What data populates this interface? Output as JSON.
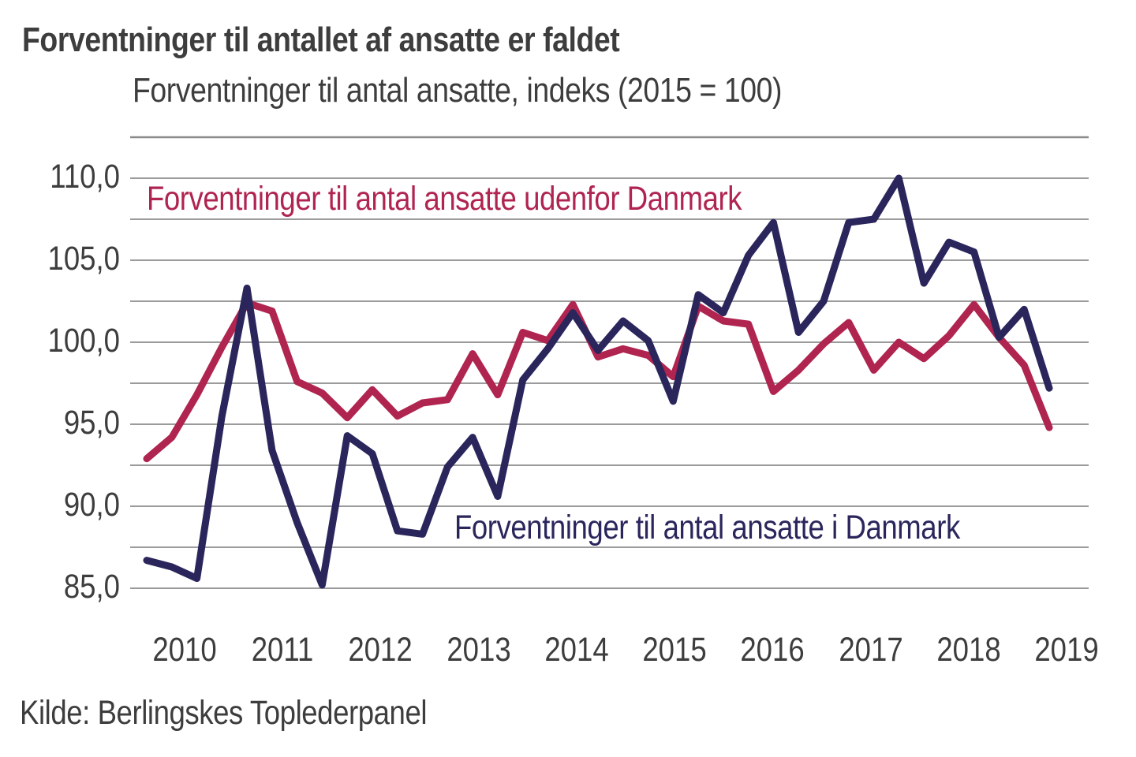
{
  "title": "Forventninger til antallet af ansatte er faldet",
  "subtitle": "Forventninger til antal ansatte, indeks (2015 = 100)",
  "source": "Kilde: Berlingskes Toplederpanel",
  "colors": {
    "red_series": "#B02450",
    "navy_series": "#2A265C",
    "gridline": "#9B9B9B",
    "gridline_top": "#8A8A8A",
    "text": "#3D3D3D"
  },
  "chart_data": {
    "type": "line",
    "title": "Forventninger til antallet af ansatte er faldet",
    "subtitle": "Forventninger til antal ansatte, indeks (2015 = 100)",
    "xlabel": "",
    "ylabel": "",
    "x_start_year": 2010,
    "x_step_years": 0.25,
    "x_tick_labels": [
      "2010",
      "2011",
      "2012",
      "2013",
      "2014",
      "2015",
      "2016",
      "2017",
      "2018",
      "2019"
    ],
    "ylim": [
      85.0,
      112.5
    ],
    "grid_step": 2.5,
    "grid_values": [
      112.5,
      110,
      107.5,
      105,
      102.5,
      100,
      97.5,
      95,
      92.5,
      90,
      87.5,
      85
    ],
    "y_ticks": [
      {
        "value": 110,
        "label": "110,0"
      },
      {
        "value": 105,
        "label": "105,0"
      },
      {
        "value": 100,
        "label": "100,0"
      },
      {
        "value": 95,
        "label": "95,0"
      },
      {
        "value": 90,
        "label": "90,0"
      },
      {
        "value": 85,
        "label": "85,0"
      }
    ],
    "legend_position": "inside-plot-annotations",
    "grid": "horizontal-only",
    "series": [
      {
        "name": "Forventninger til antal ansatte udenfor Danmark",
        "color": "#B02450",
        "values": [
          92.9,
          94.2,
          96.8,
          99.7,
          102.4,
          101.9,
          97.6,
          96.9,
          95.4,
          97.1,
          95.5,
          96.3,
          96.5,
          99.3,
          96.8,
          100.6,
          100.1,
          102.3,
          99.1,
          99.6,
          99.2,
          97.9,
          102.2,
          101.3,
          101.1,
          97.0,
          98.3,
          99.9,
          101.2,
          98.3,
          100.0,
          99.0,
          100.4,
          102.3,
          100.3,
          98.6,
          94.8
        ]
      },
      {
        "name": "Forventninger til antal ansatte i Danmark",
        "color": "#2A265C",
        "values": [
          86.7,
          86.3,
          85.6,
          95.5,
          103.3,
          93.4,
          89.0,
          85.2,
          94.3,
          93.2,
          88.5,
          88.3,
          92.4,
          94.2,
          90.6,
          97.7,
          99.6,
          101.8,
          99.5,
          101.3,
          100.1,
          96.4,
          102.9,
          101.8,
          105.3,
          107.3,
          100.6,
          102.5,
          107.3,
          107.5,
          110.0,
          103.6,
          106.1,
          105.5,
          100.3,
          102.0,
          97.2
        ]
      }
    ]
  }
}
